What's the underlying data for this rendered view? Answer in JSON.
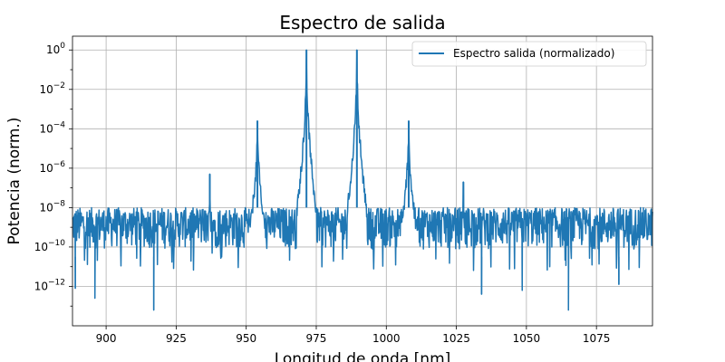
{
  "chart_data": {
    "type": "line",
    "title": "Espectro de salida",
    "xlabel": "Longitud de onda [nm]",
    "ylabel": "Potencia (norm.)",
    "xlim": [
      888,
      1095
    ],
    "ylog_range": [
      -14,
      0.7
    ],
    "x_ticks": [
      900,
      925,
      950,
      975,
      1000,
      1025,
      1050,
      1075
    ],
    "x_tick_labels": [
      "900",
      "925",
      "950",
      "975",
      "1000",
      "1025",
      "1050",
      "1075"
    ],
    "y_ticks": [
      {
        "exp": 0,
        "mantissa": "10",
        "power": "0"
      },
      {
        "exp": -2,
        "mantissa": "10",
        "power": "−2"
      },
      {
        "exp": -4,
        "mantissa": "10",
        "power": "−4"
      },
      {
        "exp": -6,
        "mantissa": "10",
        "power": "−6"
      },
      {
        "exp": -8,
        "mantissa": "10",
        "power": "−8"
      },
      {
        "exp": -10,
        "mantissa": "10",
        "power": "−10"
      },
      {
        "exp": -12,
        "mantissa": "10",
        "power": "−12"
      }
    ],
    "grid": true,
    "legend": {
      "location": "top-right",
      "entries": [
        "Espectro salida (normalizado)"
      ]
    },
    "series": [
      {
        "name": "Espectro salida (normalizado)",
        "color": "#1f77b4",
        "noise_floor_log10_range": [
          -10.5,
          -8.0
        ],
        "peaks": [
          {
            "x": 937,
            "log10_power": -6.3,
            "width_nm": 0.35
          },
          {
            "x": 954,
            "log10_power": -3.6,
            "width_nm": 0.6
          },
          {
            "x": 971.5,
            "log10_power": 0.0,
            "width_nm": 0.35
          },
          {
            "x": 989.5,
            "log10_power": 0.0,
            "width_nm": 0.35
          },
          {
            "x": 1008,
            "log10_power": -3.6,
            "width_nm": 0.6
          },
          {
            "x": 1027.5,
            "log10_power": -6.7,
            "width_nm": 0.35
          }
        ],
        "deep_dips": [
          {
            "x": 889,
            "log10_power": -12.1
          },
          {
            "x": 896,
            "log10_power": -12.6
          },
          {
            "x": 917,
            "log10_power": -13.2
          },
          {
            "x": 1034,
            "log10_power": -12.4
          },
          {
            "x": 1048.5,
            "log10_power": -12.2
          },
          {
            "x": 1065,
            "log10_power": -13.2
          },
          {
            "x": 1083,
            "log10_power": -11.9
          }
        ]
      }
    ]
  }
}
